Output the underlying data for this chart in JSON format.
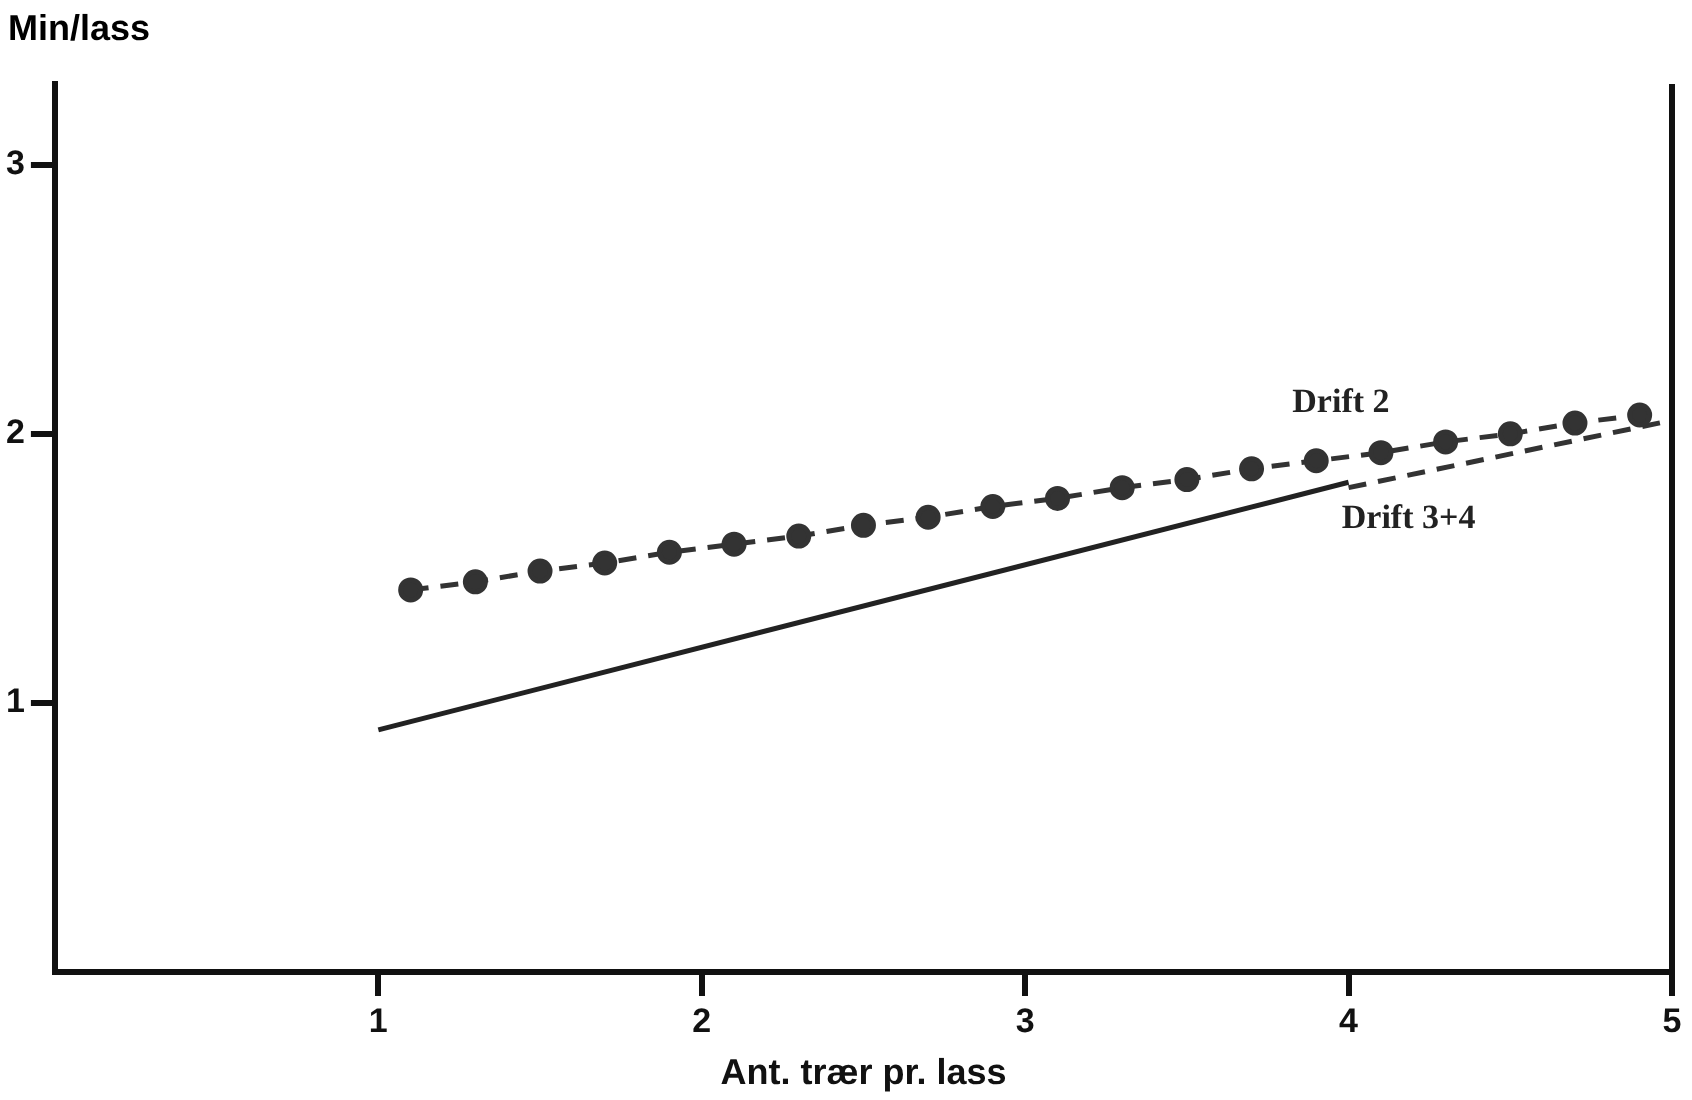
{
  "chart_data": {
    "type": "line",
    "ylabel": "Min/lass",
    "xlabel": "Ant. trær pr. lass",
    "xlim": [
      0,
      5
    ],
    "xticks": [
      1,
      2,
      3,
      4,
      5
    ],
    "ylim": [
      0,
      3.3
    ],
    "yticks": [
      1,
      2,
      3
    ],
    "grid": false,
    "legend": false,
    "series": [
      {
        "name": "Drift 2",
        "color": "#333333",
        "marker": "circle",
        "line_style": "dashed",
        "x": [
          1.1,
          1.3,
          1.5,
          1.7,
          1.9,
          2.1,
          2.3,
          2.5,
          2.7,
          2.9,
          3.1,
          3.3,
          3.5,
          3.7,
          3.9,
          4.1,
          4.3,
          4.5,
          4.7,
          4.9
        ],
        "values": [
          1.42,
          1.45,
          1.49,
          1.52,
          1.56,
          1.59,
          1.62,
          1.66,
          1.69,
          1.73,
          1.76,
          1.8,
          1.83,
          1.87,
          1.9,
          1.93,
          1.97,
          2.0,
          2.04,
          2.07
        ]
      },
      {
        "name": "Drift 3+4",
        "color": "#222222",
        "marker": "none",
        "line_style": "solid",
        "x": [
          1,
          4
        ],
        "values": [
          0.9,
          1.82
        ]
      },
      {
        "color": "#333333",
        "marker": "none",
        "line_style": "dashed",
        "x": [
          4,
          5
        ],
        "values": [
          1.8,
          2.05
        ]
      }
    ]
  }
}
